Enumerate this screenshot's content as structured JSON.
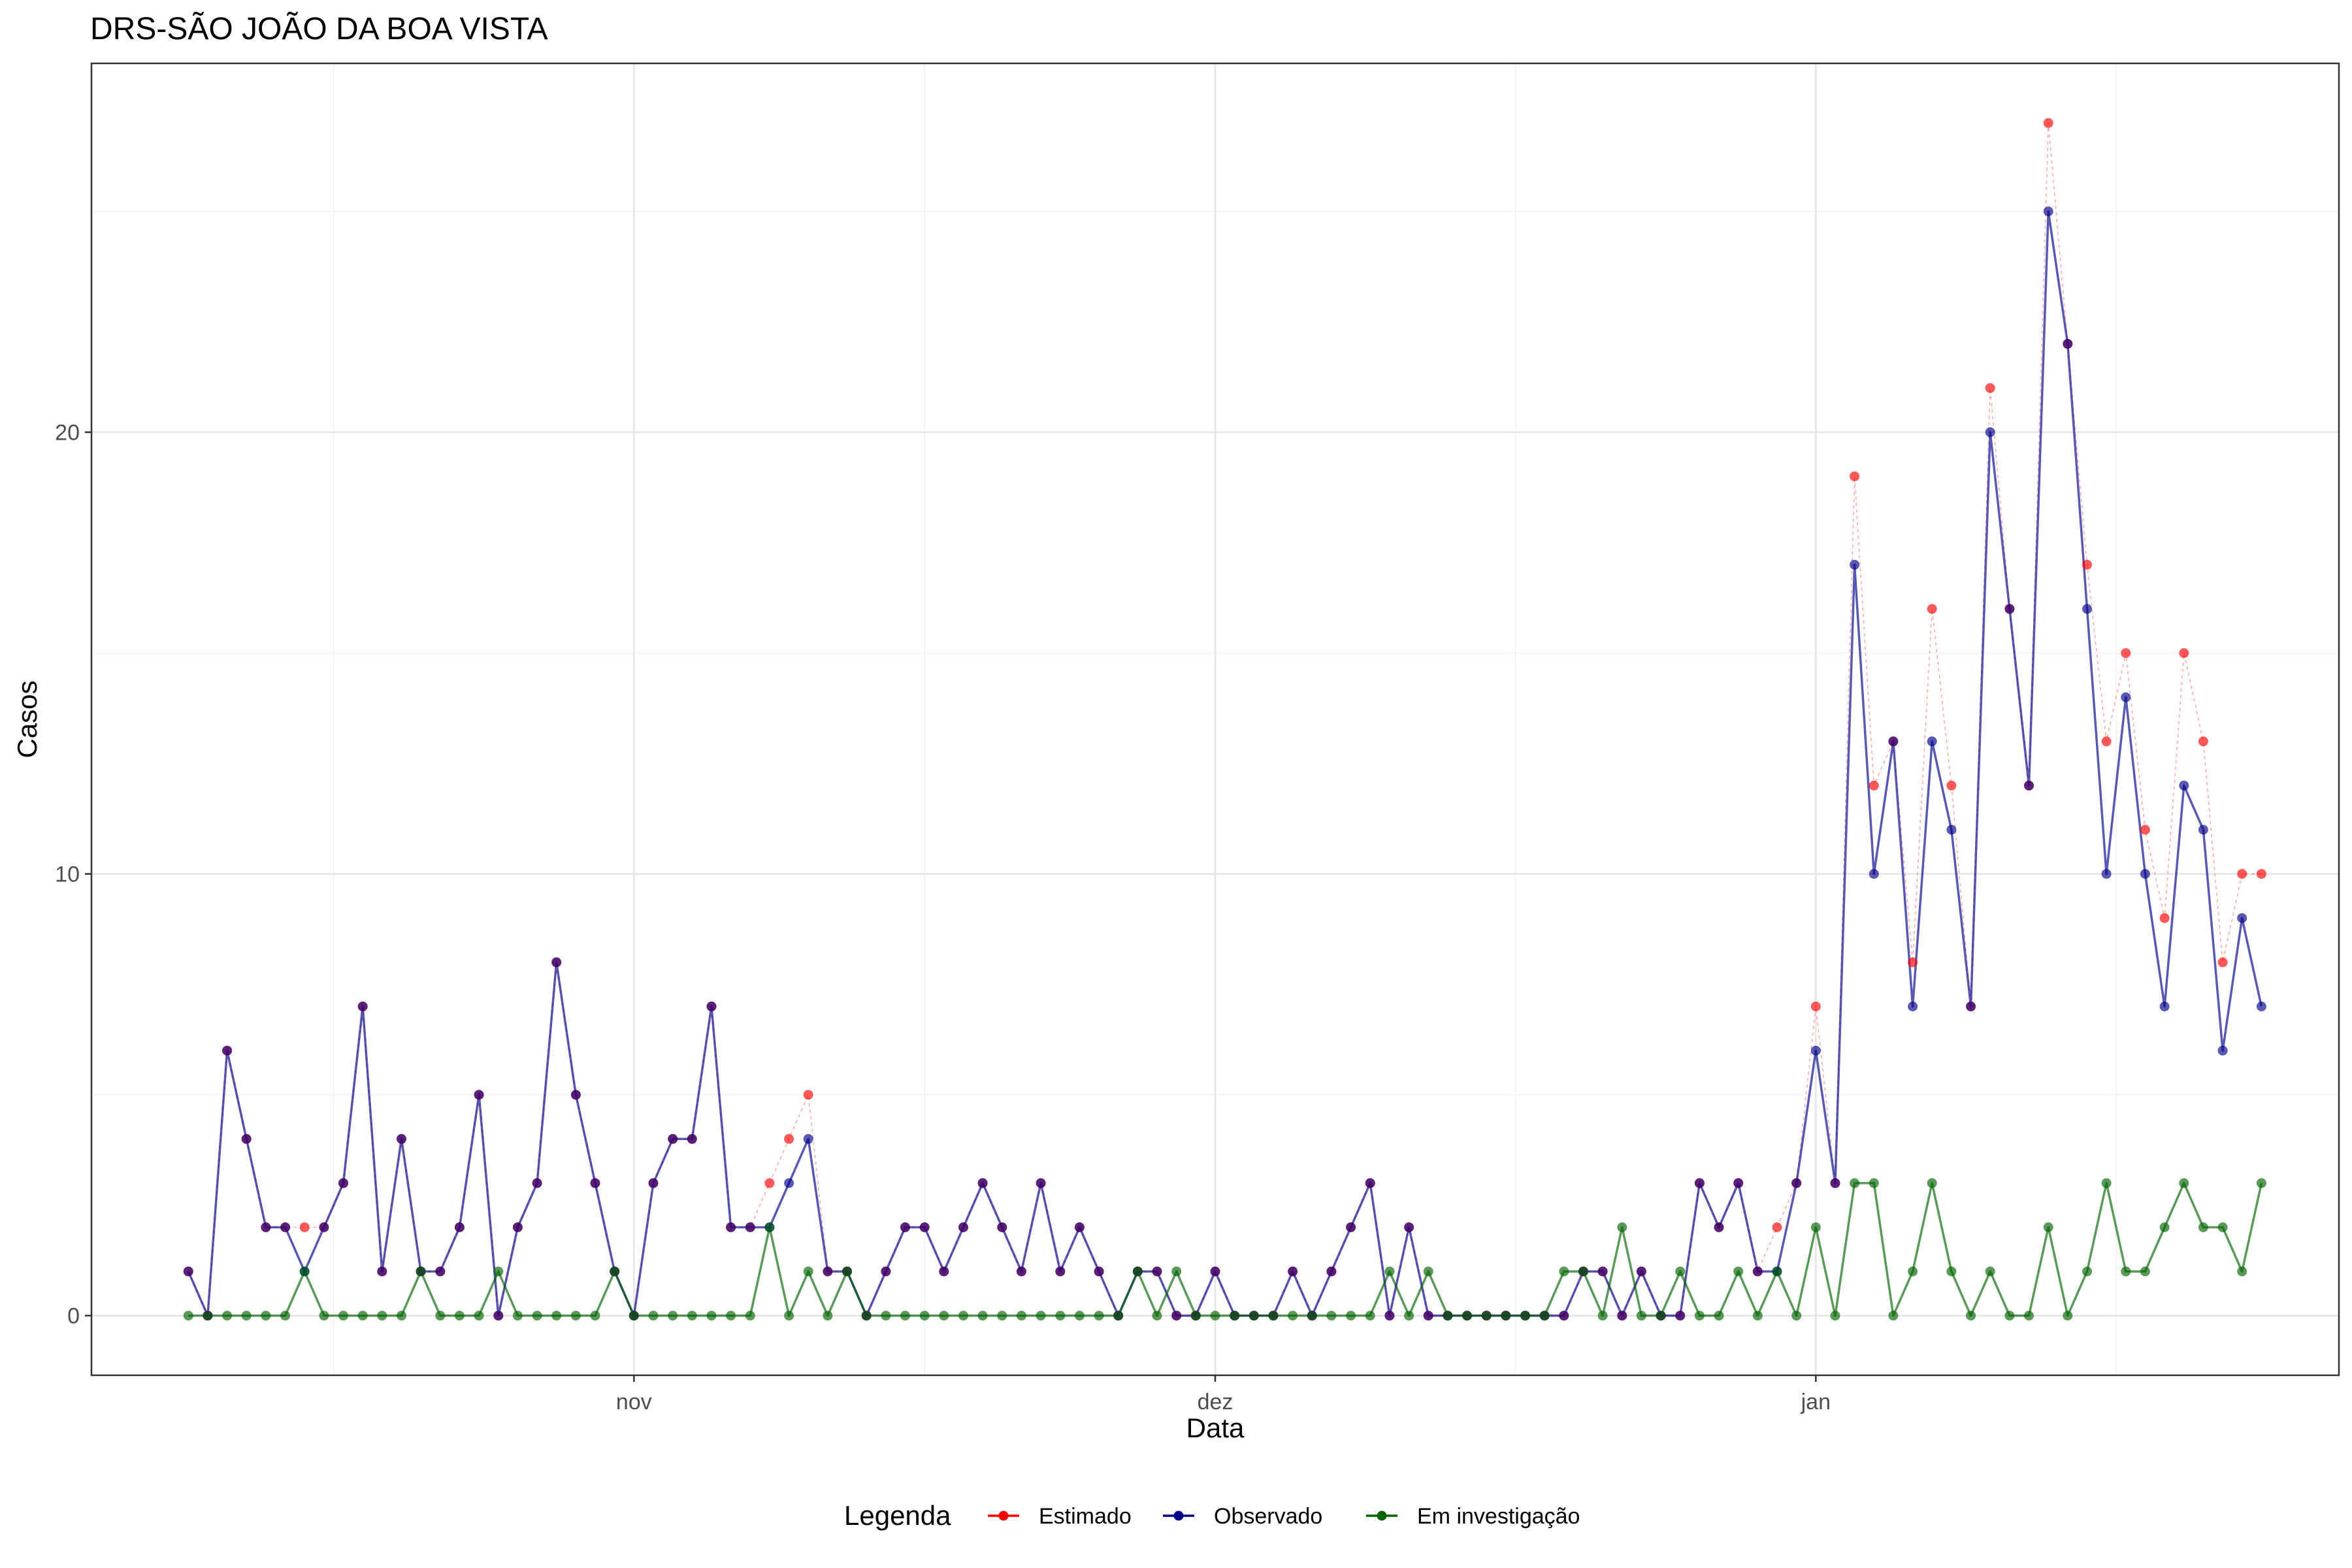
{
  "chart_data": {
    "type": "line",
    "title": "DRS-SÃO JOÃO DA BOA VISTA",
    "xlabel": "Data",
    "ylabel": "Casos",
    "x_tick_labels": [
      "nov",
      "dez",
      "jan"
    ],
    "y_tick_labels": [
      "0",
      "10",
      "20"
    ],
    "y_ticks": [
      0,
      10,
      20
    ],
    "ylim": [
      -1.35,
      28.35
    ],
    "x_start_date": "2020-10-09",
    "x_end_date": "2021-01-24",
    "x_range_dates": [
      "2020-10-04",
      "2021-01-28"
    ],
    "grid": true,
    "legend": {
      "title": "Legenda",
      "position": "bottom",
      "items": [
        {
          "label": "Estimado",
          "color": "#FF0000"
        },
        {
          "label": "Observado",
          "color": "#00008B"
        },
        {
          "label": "Em investigação",
          "color": "#006400"
        }
      ]
    },
    "series": [
      {
        "name": "Estimado",
        "color": "#FF0000",
        "values": [
          1,
          0,
          6,
          4,
          2,
          2,
          2,
          2,
          3,
          7,
          1,
          4,
          1,
          1,
          2,
          5,
          0,
          2,
          3,
          8,
          5,
          3,
          1,
          0,
          3,
          4,
          4,
          7,
          2,
          2,
          3,
          4,
          5,
          1,
          1,
          0,
          1,
          2,
          2,
          1,
          2,
          3,
          2,
          1,
          3,
          1,
          2,
          1,
          0,
          1,
          1,
          0,
          0,
          1,
          0,
          0,
          0,
          1,
          0,
          1,
          2,
          3,
          0,
          2,
          0,
          0,
          0,
          0,
          0,
          0,
          0,
          0,
          1,
          1,
          0,
          1,
          0,
          0,
          3,
          2,
          3,
          1,
          2,
          3,
          7,
          3,
          19,
          12,
          13,
          8,
          16,
          12,
          7,
          21,
          16,
          12,
          27,
          22,
          17,
          13,
          15,
          11,
          9,
          15,
          13,
          8,
          10,
          10
        ]
      },
      {
        "name": "Observado",
        "color": "#00008B",
        "values": [
          1,
          0,
          6,
          4,
          2,
          2,
          1,
          2,
          3,
          7,
          1,
          4,
          1,
          1,
          2,
          5,
          0,
          2,
          3,
          8,
          5,
          3,
          1,
          0,
          3,
          4,
          4,
          7,
          2,
          2,
          2,
          3,
          4,
          1,
          1,
          0,
          1,
          2,
          2,
          1,
          2,
          3,
          2,
          1,
          3,
          1,
          2,
          1,
          0,
          1,
          1,
          0,
          0,
          1,
          0,
          0,
          0,
          1,
          0,
          1,
          2,
          3,
          0,
          2,
          0,
          0,
          0,
          0,
          0,
          0,
          0,
          0,
          1,
          1,
          0,
          1,
          0,
          0,
          3,
          2,
          3,
          1,
          1,
          3,
          6,
          3,
          17,
          10,
          13,
          7,
          13,
          11,
          7,
          20,
          16,
          12,
          25,
          22,
          16,
          10,
          14,
          10,
          7,
          12,
          11,
          6,
          9,
          7
        ]
      },
      {
        "name": "Em investigação",
        "color": "#006400",
        "values": [
          0,
          0,
          0,
          0,
          0,
          0,
          1,
          0,
          0,
          0,
          0,
          0,
          1,
          0,
          0,
          0,
          1,
          0,
          0,
          0,
          0,
          0,
          1,
          0,
          0,
          0,
          0,
          0,
          0,
          0,
          2,
          0,
          1,
          0,
          1,
          0,
          0,
          0,
          0,
          0,
          0,
          0,
          0,
          0,
          0,
          0,
          0,
          0,
          0,
          1,
          0,
          1,
          0,
          0,
          0,
          0,
          0,
          0,
          0,
          0,
          0,
          0,
          1,
          0,
          1,
          0,
          0,
          0,
          0,
          0,
          0,
          1,
          1,
          0,
          2,
          0,
          0,
          1,
          0,
          0,
          1,
          0,
          1,
          0,
          2,
          0,
          3,
          3,
          0,
          1,
          3,
          1,
          0,
          1,
          0,
          0,
          2,
          0,
          1,
          3,
          1,
          1,
          2,
          3,
          2,
          2,
          1,
          3
        ]
      }
    ]
  }
}
